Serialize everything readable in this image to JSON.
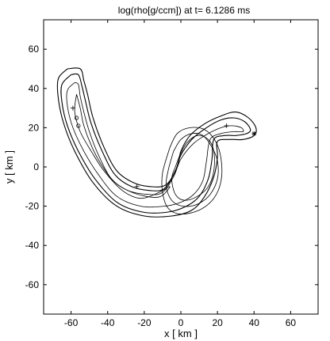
{
  "chart_data": {
    "type": "contour",
    "title": "log(rho[g/ccm]) at t= 6.1286 ms",
    "xlabel": "x [ km ]",
    "ylabel": "y [ km ]",
    "xlim": [
      -75,
      75
    ],
    "ylim": [
      -75,
      75
    ],
    "xticks": [
      -60,
      -40,
      -20,
      0,
      20,
      40,
      60
    ],
    "yticks": [
      -60,
      -40,
      -20,
      0,
      20,
      40,
      60
    ],
    "grid": false,
    "markers": [
      {
        "symbol": "+",
        "x": -59,
        "y": 30
      },
      {
        "symbol": "o",
        "x": -57,
        "y": 25
      },
      {
        "symbol": "o",
        "x": -56,
        "y": 21
      },
      {
        "symbol": "+",
        "x": -24,
        "y": -10
      },
      {
        "symbol": "+",
        "x": 25,
        "y": 21
      },
      {
        "symbol": "*",
        "x": 40,
        "y": 17
      }
    ],
    "contours": [
      {
        "level": 1,
        "points": [
          [
            -62,
            50
          ],
          [
            -55,
            50
          ],
          [
            -53,
            44
          ],
          [
            -51,
            37
          ],
          [
            -48,
            25
          ],
          [
            -42,
            10
          ],
          [
            -35,
            -2
          ],
          [
            -26,
            -8
          ],
          [
            -17,
            -10
          ],
          [
            -8,
            -9
          ],
          [
            -2,
            0
          ],
          [
            0,
            8
          ],
          [
            5,
            16
          ],
          [
            13,
            22
          ],
          [
            22,
            26
          ],
          [
            30,
            28
          ],
          [
            37,
            25
          ],
          [
            41,
            20
          ],
          [
            40,
            16
          ],
          [
            34,
            14
          ],
          [
            27,
            14
          ],
          [
            20,
            13
          ],
          [
            20,
            5
          ],
          [
            18,
            -5
          ],
          [
            13,
            -15
          ],
          [
            6,
            -22
          ],
          [
            -5,
            -25
          ],
          [
            -20,
            -25
          ],
          [
            -35,
            -20
          ],
          [
            -48,
            -8
          ],
          [
            -58,
            8
          ],
          [
            -64,
            22
          ],
          [
            -67,
            35
          ],
          [
            -67,
            45
          ],
          [
            -62,
            50
          ]
        ]
      },
      {
        "level": 2,
        "points": [
          [
            -60,
            47
          ],
          [
            -56,
            47
          ],
          [
            -54,
            41
          ],
          [
            -52,
            33
          ],
          [
            -49,
            22
          ],
          [
            -43,
            8
          ],
          [
            -36,
            -4
          ],
          [
            -27,
            -10
          ],
          [
            -17,
            -12
          ],
          [
            -9,
            -11
          ],
          [
            -3,
            -2
          ],
          [
            0,
            6
          ],
          [
            6,
            14
          ],
          [
            14,
            20
          ],
          [
            22,
            24
          ],
          [
            29,
            25
          ],
          [
            35,
            23
          ],
          [
            38,
            19
          ],
          [
            36,
            17
          ],
          [
            30,
            16
          ],
          [
            24,
            16
          ],
          [
            18,
            14
          ],
          [
            17,
            4
          ],
          [
            15,
            -6
          ],
          [
            10,
            -15
          ],
          [
            3,
            -20
          ],
          [
            -7,
            -23
          ],
          [
            -21,
            -23
          ],
          [
            -35,
            -18
          ],
          [
            -47,
            -6
          ],
          [
            -56,
            8
          ],
          [
            -62,
            21
          ],
          [
            -65,
            33
          ],
          [
            -65,
            42
          ],
          [
            -60,
            47
          ]
        ]
      },
      {
        "level": 3,
        "points": [
          [
            -58,
            43
          ],
          [
            -56,
            42
          ],
          [
            -55,
            36
          ],
          [
            -53,
            28
          ],
          [
            -50,
            18
          ],
          [
            -45,
            6
          ],
          [
            -38,
            -6
          ],
          [
            -29,
            -12
          ],
          [
            -18,
            -14
          ],
          [
            -10,
            -13
          ],
          [
            -4,
            -5
          ],
          [
            0,
            4
          ],
          [
            7,
            12
          ],
          [
            15,
            17
          ],
          [
            22,
            20
          ],
          [
            28,
            21
          ],
          [
            33,
            20
          ],
          [
            34,
            18
          ],
          [
            29,
            18
          ],
          [
            22,
            17
          ],
          [
            16,
            14
          ],
          [
            14,
            3
          ],
          [
            12,
            -7
          ],
          [
            7,
            -14
          ],
          [
            0,
            -18
          ],
          [
            -9,
            -20
          ],
          [
            -22,
            -20
          ],
          [
            -35,
            -15
          ],
          [
            -45,
            -4
          ],
          [
            -53,
            8
          ],
          [
            -59,
            20
          ],
          [
            -62,
            31
          ],
          [
            -62,
            39
          ],
          [
            -58,
            43
          ]
        ]
      },
      {
        "level": 4,
        "points": [
          [
            -57,
            37
          ],
          [
            -55,
            30
          ],
          [
            -53,
            21
          ],
          [
            -49,
            11
          ],
          [
            -44,
            2
          ],
          [
            -37,
            -7
          ],
          [
            -29,
            -12
          ],
          [
            -19,
            -15
          ],
          [
            -11,
            -15
          ],
          [
            -6,
            -10
          ],
          [
            -12,
            -13
          ],
          [
            -22,
            -16
          ],
          [
            -32,
            -12
          ],
          [
            -42,
            -2
          ],
          [
            -49,
            8
          ],
          [
            -55,
            18
          ],
          [
            -58,
            28
          ],
          [
            -57,
            37
          ]
        ]
      },
      {
        "level": 5,
        "points": [
          [
            -1,
            5
          ],
          [
            3,
            12
          ],
          [
            9,
            16
          ],
          [
            15,
            14
          ],
          [
            18,
            8
          ],
          [
            18,
            -2
          ],
          [
            15,
            -10
          ],
          [
            9,
            -15
          ],
          [
            2,
            -17
          ],
          [
            -3,
            -14
          ],
          [
            -5,
            -6
          ],
          [
            -3,
            0
          ],
          [
            -1,
            5
          ]
        ]
      },
      {
        "level": 6,
        "points": [
          [
            -4,
            8
          ],
          [
            0,
            14
          ],
          [
            6,
            17
          ],
          [
            12,
            16
          ],
          [
            17,
            10
          ],
          [
            20,
            3
          ],
          [
            20,
            -6
          ],
          [
            16,
            -14
          ],
          [
            9,
            -19
          ],
          [
            1,
            -20
          ],
          [
            -5,
            -17
          ],
          [
            -8,
            -10
          ],
          [
            -7,
            -2
          ],
          [
            -4,
            8
          ]
        ]
      },
      {
        "level": 7,
        "points": [
          [
            -6,
            10
          ],
          [
            -2,
            17
          ],
          [
            5,
            20
          ],
          [
            13,
            19
          ],
          [
            19,
            13
          ],
          [
            22,
            4
          ],
          [
            22,
            -7
          ],
          [
            18,
            -16
          ],
          [
            10,
            -22
          ],
          [
            0,
            -24
          ],
          [
            -7,
            -21
          ],
          [
            -10,
            -13
          ],
          [
            -10,
            -3
          ],
          [
            -6,
            10
          ]
        ]
      }
    ]
  }
}
